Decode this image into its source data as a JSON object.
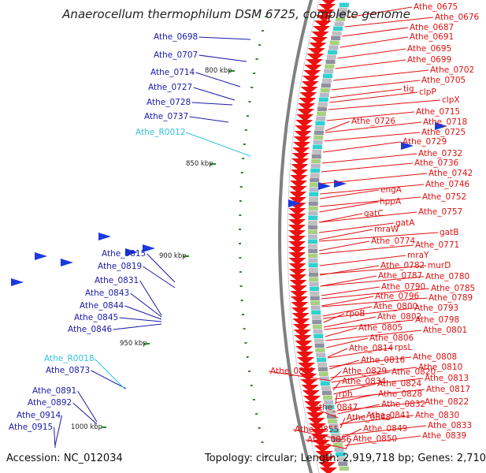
{
  "title": "Anaerocellum thermophilum DSM 6725, complete genome",
  "accession": "Accession: NC_012034",
  "topology": "Topology: circular; Length: 2,919,718 bp; Genes: 2,710",
  "colors": {
    "forward_label": "#1a1aa8",
    "rna_label": "#33c3e0",
    "reverse_label": "#e01010",
    "forward_arrow": "#1a3ae0",
    "reverse_arrow": "#ee1010",
    "backbone": "#808080"
  },
  "scale_ticks": [
    "800 kbp",
    "850 kbp",
    "900 kbp",
    "950 kbp",
    "1000 kbp"
  ],
  "forward_genes": [
    "Athe_0698",
    "Athe_0707",
    "Athe_0714",
    "Athe_0727",
    "Athe_0728",
    "Athe_0737",
    "Athe_0815",
    "Athe_0819",
    "Athe_0831",
    "Athe_0843",
    "Athe_0844",
    "Athe_0845",
    "Athe_0846",
    "Athe_0873",
    "Athe_0891",
    "Athe_0892",
    "Athe_0914",
    "Athe_0915"
  ],
  "rna_genes": [
    "Athe_R0012",
    "Athe_R0018"
  ],
  "reverse_genes": [
    "Athe_0675",
    "Athe_0676",
    "Athe_0687",
    "Athe_0691",
    "Athe_0695",
    "Athe_0699",
    "Athe_0702",
    "Athe_0705",
    "tig",
    "clpP",
    "clpX",
    "Athe_0715",
    "Athe_0718",
    "Athe_0726",
    "Athe_0725",
    "Athe_0729",
    "Athe_0732",
    "Athe_0736",
    "Athe_0742",
    "Athe_0746",
    "engA",
    "hppA",
    "Athe_0752",
    "gatC",
    "Athe_0757",
    "gatA",
    "gatB",
    "mraW",
    "Athe_0774",
    "Athe_0771",
    "mraY",
    "Athe_0782",
    "murD",
    "Athe_0787",
    "Athe_0780",
    "Athe_0790",
    "Athe_0785",
    "Athe_0796",
    "Athe_0789",
    "Athe_0793",
    "Athe_0800",
    "rpoB",
    "Athe_0802",
    "Athe_0798",
    "Athe_0805",
    "Athe_0801",
    "Athe_0806",
    "Athe_0814",
    "rpsL",
    "Athe_0808",
    "Athe_0816",
    "Athe_0810",
    "Athe_0842",
    "Athe_0829",
    "Athe_0820",
    "Athe_0813",
    "Athe_0834",
    "Athe_0824",
    "Athe_0817",
    "Athe_0828",
    "rph",
    "Athe_0832",
    "Athe_0822",
    "Athe_0847",
    "Athe_0841",
    "Athe_0830",
    "Athe_0848",
    "Athe_0833",
    "Athe_0849",
    "Athe_0855",
    "Athe_0839",
    "Athe_0856",
    "Athe_0850"
  ]
}
